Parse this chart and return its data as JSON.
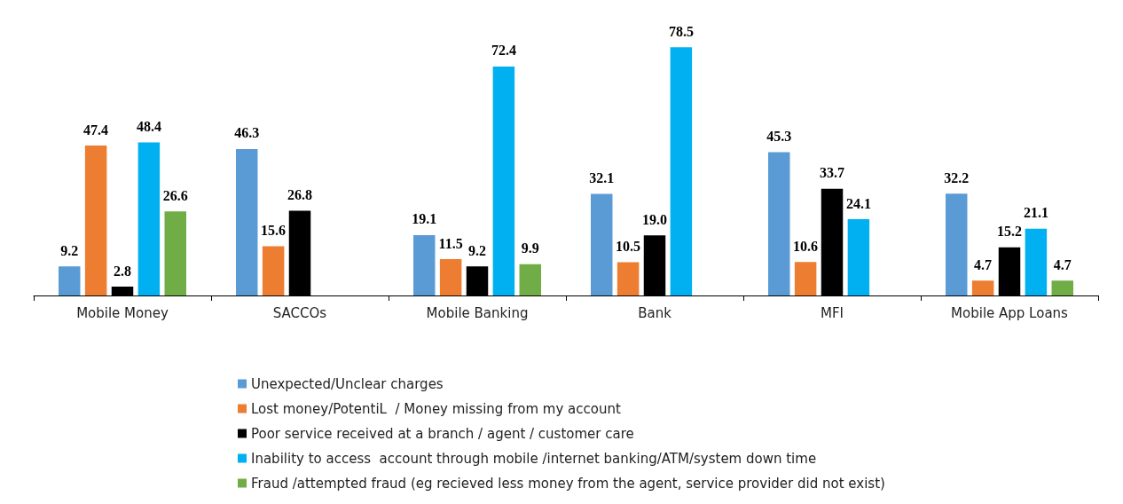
{
  "chart_data": {
    "type": "bar",
    "categories": [
      "Mobile Money",
      "SACCOs",
      "Mobile Banking",
      "Bank",
      "MFI",
      "Mobile App Loans"
    ],
    "series": [
      {
        "name": "Unexpected/Unclear charges",
        "color": "#5b9bd5",
        "values": [
          9.2,
          46.3,
          19.1,
          32.1,
          45.3,
          32.2
        ]
      },
      {
        "name": "Lost money/PotentiL  / Money missing from my account",
        "color": "#ed7d31",
        "values": [
          47.4,
          15.6,
          11.5,
          10.5,
          10.6,
          4.7
        ]
      },
      {
        "name": "Poor service received at a branch / agent / customer care",
        "color": "#000000",
        "values": [
          2.8,
          26.8,
          9.2,
          19.0,
          33.7,
          15.2
        ],
        "value_labels": [
          "2.8",
          "26.8",
          "9.2",
          "19.0",
          "33.7",
          "15.2"
        ]
      },
      {
        "name": "Inability to access  account through mobile /internet banking/ATM/system down time",
        "color": "#00b0f0",
        "values": [
          48.4,
          null,
          72.4,
          78.5,
          24.1,
          21.1
        ]
      },
      {
        "name": "Fraud /attempted fraud (eg recieved less money from the agent, service provider did not exist)",
        "color": "#70ad47",
        "values": [
          26.6,
          null,
          9.9,
          null,
          null,
          4.7
        ]
      }
    ],
    "data_labels": true,
    "grid": false,
    "legend": "bottom"
  }
}
